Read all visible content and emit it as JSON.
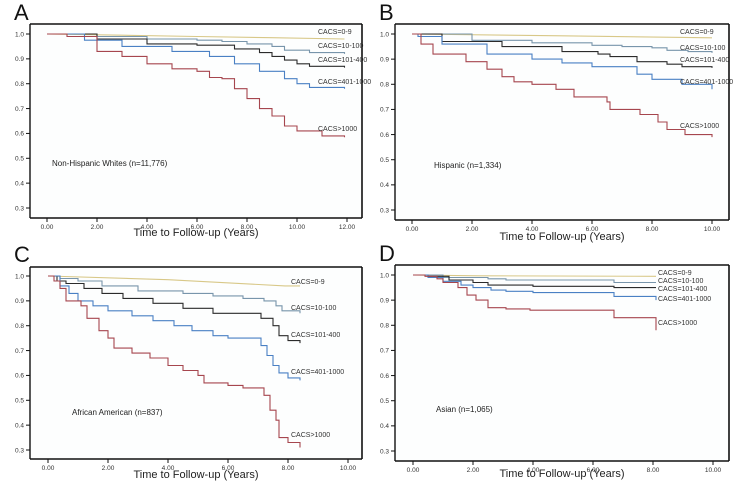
{
  "figure": {
    "description": "Kaplan-Meier survival curves by CACS category and ethnicity"
  },
  "colors": {
    "CACS=0-9": "#d8c888",
    "CACS=10-100": "#7895ab",
    "CACS=101-400": "#2b2b2b",
    "CACS=401-1000": "#4a80c4",
    "CACS>1000": "#a6464e"
  },
  "chart_data": [
    {
      "type": "line",
      "panel": "A",
      "title": "",
      "annotation": "Non-Hispanic Whites (n=11,776)",
      "xlabel": "Time to Follow-up (Years)",
      "ylabel": "",
      "xlim": [
        0,
        12
      ],
      "ylim": [
        0.3,
        1.0
      ],
      "xticks": [
        0,
        2,
        4,
        6,
        8,
        10,
        12
      ],
      "xtick_labels": [
        "0.00",
        "2.00",
        "4.00",
        "6.00",
        "8.00",
        "10.00",
        "12.00"
      ],
      "yticks": [
        0.3,
        0.4,
        0.5,
        0.6,
        0.7,
        0.8,
        0.9,
        1.0
      ],
      "ytick_labels": [
        "0.3",
        "0.4",
        "0.5",
        "0.6",
        "0.7",
        "0.8",
        "0.9",
        "1.0"
      ],
      "grid": false,
      "series": [
        {
          "name": "CACS=0-9",
          "label": "CACS=0-9",
          "x": [
            0,
            3,
            6,
            9,
            11.9
          ],
          "y": [
            1.0,
            0.995,
            0.99,
            0.985,
            0.98
          ]
        },
        {
          "name": "CACS=10-100",
          "label": "CACS=10-100",
          "x": [
            0,
            2,
            4,
            6,
            7,
            8,
            9,
            9.5,
            10.5,
            11.9
          ],
          "y": [
            1.0,
            0.99,
            0.98,
            0.975,
            0.97,
            0.96,
            0.95,
            0.935,
            0.925,
            0.92
          ]
        },
        {
          "name": "CACS=101-400",
          "label": "CACS=101-400",
          "x": [
            0,
            2,
            4,
            6,
            7.5,
            8.5,
            9,
            9.5,
            10,
            10.5,
            11.9
          ],
          "y": [
            1.0,
            0.98,
            0.96,
            0.955,
            0.94,
            0.925,
            0.91,
            0.895,
            0.88,
            0.87,
            0.865
          ]
        },
        {
          "name": "CACS=401-1000",
          "label": "CACS=401-1000",
          "x": [
            0,
            1.5,
            3,
            5,
            6.5,
            7.5,
            8.5,
            9.5,
            10,
            10.5,
            11.9
          ],
          "y": [
            1.0,
            0.975,
            0.95,
            0.93,
            0.91,
            0.88,
            0.85,
            0.82,
            0.8,
            0.785,
            0.78
          ]
        },
        {
          "name": "CACS>1000",
          "label": "CACS>1000",
          "x": [
            0,
            0.8,
            2,
            3,
            4,
            5,
            6,
            6.5,
            7,
            7.5,
            8,
            8.5,
            9,
            9.5,
            10,
            11,
            11.9
          ],
          "y": [
            1.0,
            0.99,
            0.93,
            0.91,
            0.88,
            0.86,
            0.85,
            0.825,
            0.82,
            0.78,
            0.74,
            0.7,
            0.67,
            0.63,
            0.61,
            0.59,
            0.585
          ]
        }
      ]
    },
    {
      "type": "line",
      "panel": "B",
      "title": "",
      "annotation": "Hispanic (n=1,334)",
      "xlabel": "Time to Follow-up (Years)",
      "ylabel": "",
      "xlim": [
        0,
        10
      ],
      "ylim": [
        0.3,
        1.0
      ],
      "xticks": [
        0,
        2,
        4,
        6,
        8,
        10
      ],
      "xtick_labels": [
        "0.00",
        "2.00",
        "4.00",
        "6.00",
        "8.00",
        "10.00"
      ],
      "yticks": [
        0.3,
        0.4,
        0.5,
        0.6,
        0.7,
        0.8,
        0.9,
        1.0
      ],
      "ytick_labels": [
        "0.3",
        "0.4",
        "0.5",
        "0.6",
        "0.7",
        "0.8",
        "0.9",
        "1.0"
      ],
      "grid": false,
      "series": [
        {
          "name": "CACS=0-9",
          "label": "CACS=0-9",
          "x": [
            0,
            5,
            10
          ],
          "y": [
            1.0,
            0.993,
            0.985
          ]
        },
        {
          "name": "CACS=10-100",
          "label": "CACS=10-100",
          "x": [
            0,
            2,
            4,
            6,
            7,
            8,
            8.5,
            9.2,
            10
          ],
          "y": [
            1.0,
            0.975,
            0.965,
            0.955,
            0.95,
            0.945,
            0.935,
            0.93,
            0.925
          ]
        },
        {
          "name": "CACS=101-400",
          "label": "CACS=101-400",
          "x": [
            0,
            1,
            3,
            5,
            6.2,
            6.6,
            7.5,
            8.5,
            9,
            10
          ],
          "y": [
            1.0,
            0.97,
            0.95,
            0.93,
            0.92,
            0.91,
            0.89,
            0.88,
            0.87,
            0.865
          ]
        },
        {
          "name": "CACS=401-1000",
          "label": "CACS=401-1000",
          "x": [
            0,
            0.2,
            1,
            2.5,
            4,
            5,
            6,
            7.5,
            8,
            9,
            10
          ],
          "y": [
            1.0,
            0.99,
            0.96,
            0.92,
            0.9,
            0.885,
            0.87,
            0.84,
            0.82,
            0.8,
            0.78
          ]
        },
        {
          "name": "CACS>1000",
          "label": "CACS>1000",
          "x": [
            0,
            0.3,
            0.7,
            1.8,
            2.5,
            3,
            3.4,
            4,
            4.8,
            5.4,
            6.5,
            6.6,
            7.6,
            8.2,
            8.5,
            9.1,
            10
          ],
          "y": [
            1.0,
            0.96,
            0.92,
            0.89,
            0.86,
            0.83,
            0.81,
            0.8,
            0.78,
            0.75,
            0.73,
            0.7,
            0.68,
            0.65,
            0.62,
            0.6,
            0.59
          ]
        }
      ]
    },
    {
      "type": "line",
      "panel": "C",
      "title": "",
      "annotation": "African American (n=837)",
      "xlabel": "Time to Follow-up (Years)",
      "ylabel": "",
      "xlim": [
        0,
        10
      ],
      "ylim": [
        0.3,
        1.0
      ],
      "xticks": [
        0,
        2,
        4,
        6,
        8,
        10
      ],
      "xtick_labels": [
        "0.00",
        "2.00",
        "4.00",
        "6.00",
        "8.00",
        "10.00"
      ],
      "yticks": [
        0.3,
        0.4,
        0.5,
        0.6,
        0.7,
        0.8,
        0.9,
        1.0
      ],
      "ytick_labels": [
        "0.3",
        "0.4",
        "0.5",
        "0.6",
        "0.7",
        "0.8",
        "0.9",
        "1.0"
      ],
      "grid": false,
      "series": [
        {
          "name": "CACS=0-9",
          "label": "CACS=0-9",
          "x": [
            0,
            4,
            7.9,
            8.4
          ],
          "y": [
            1.0,
            0.985,
            0.96,
            0.96
          ]
        },
        {
          "name": "CACS=10-100",
          "label": "CACS=10-100",
          "x": [
            0,
            0.4,
            1,
            1.8,
            3,
            4.5,
            5.5,
            6.5,
            7.2,
            7.6,
            7.8,
            8.4
          ],
          "y": [
            1.0,
            0.99,
            0.98,
            0.96,
            0.94,
            0.93,
            0.92,
            0.91,
            0.9,
            0.88,
            0.86,
            0.85
          ]
        },
        {
          "name": "CACS=101-400",
          "label": "CACS=101-400",
          "x": [
            0,
            0.3,
            0.6,
            1.2,
            1.8,
            2.5,
            3.5,
            4.5,
            5.5,
            6.8,
            7.1,
            7.5,
            7.7,
            8,
            8.4
          ],
          "y": [
            1.0,
            0.98,
            0.97,
            0.95,
            0.93,
            0.91,
            0.89,
            0.87,
            0.85,
            0.85,
            0.83,
            0.8,
            0.76,
            0.74,
            0.73
          ]
        },
        {
          "name": "CACS=401-1000",
          "label": "CACS=401-1000",
          "x": [
            0,
            0.4,
            0.7,
            1,
            1.5,
            2,
            2.8,
            3.5,
            4.2,
            4.8,
            5.5,
            6,
            6.8,
            7.1,
            7.3,
            7.5,
            7.7,
            8,
            8.4
          ],
          "y": [
            1.0,
            0.96,
            0.93,
            0.9,
            0.88,
            0.86,
            0.84,
            0.82,
            0.8,
            0.78,
            0.76,
            0.75,
            0.75,
            0.72,
            0.68,
            0.64,
            0.61,
            0.59,
            0.58
          ]
        },
        {
          "name": "CACS>1000",
          "label": "CACS>1000",
          "x": [
            0,
            0.2,
            0.4,
            0.6,
            1.1,
            1.3,
            1.7,
            2,
            2.2,
            2.8,
            3.4,
            4,
            4.5,
            5,
            5.2,
            6,
            6.5,
            7.2,
            7.4,
            7.6,
            7.7,
            8,
            8.4
          ],
          "y": [
            1.0,
            0.98,
            0.95,
            0.9,
            0.88,
            0.83,
            0.78,
            0.75,
            0.71,
            0.69,
            0.67,
            0.64,
            0.62,
            0.6,
            0.57,
            0.56,
            0.55,
            0.52,
            0.46,
            0.42,
            0.35,
            0.33,
            0.31
          ]
        }
      ]
    },
    {
      "type": "line",
      "panel": "D",
      "title": "",
      "annotation": "Asian (n=1,065)",
      "xlabel": "Time to Follow-up (Years)",
      "ylabel": "",
      "xlim": [
        0,
        10
      ],
      "ylim": [
        0.3,
        1.0
      ],
      "xticks": [
        0,
        2,
        4,
        6,
        8,
        10
      ],
      "xtick_labels": [
        "0.00",
        "2.00",
        "4.00",
        "6.00",
        "8.00",
        "10.00"
      ],
      "yticks": [
        0.3,
        0.4,
        0.5,
        0.6,
        0.7,
        0.8,
        0.9,
        1.0
      ],
      "ytick_labels": [
        "0.3",
        "0.4",
        "0.5",
        "0.6",
        "0.7",
        "0.8",
        "0.9",
        "1.0"
      ],
      "grid": false,
      "series": [
        {
          "name": "CACS=0-9",
          "label": "CACS=0-9",
          "x": [
            0,
            2.2,
            8.1
          ],
          "y": [
            1.0,
            0.997,
            0.995
          ]
        },
        {
          "name": "CACS=10-100",
          "label": "CACS=10-100",
          "x": [
            0,
            1,
            2.5,
            3.1,
            6.7,
            6.7,
            8.1
          ],
          "y": [
            1.0,
            0.99,
            0.985,
            0.98,
            0.98,
            0.97,
            0.97
          ]
        },
        {
          "name": "CACS=101-400",
          "label": "CACS=101-400",
          "x": [
            0,
            0.5,
            1.2,
            2,
            2.5,
            4,
            6.7,
            8.1
          ],
          "y": [
            1.0,
            0.995,
            0.98,
            0.97,
            0.96,
            0.955,
            0.95,
            0.95
          ]
        },
        {
          "name": "CACS=401-1000",
          "label": "CACS=401-1000",
          "x": [
            0,
            0.5,
            1,
            1.6,
            2,
            2.6,
            3.1,
            4,
            6.7,
            8.1,
            8.1
          ],
          "y": [
            1.0,
            0.99,
            0.975,
            0.96,
            0.95,
            0.94,
            0.935,
            0.93,
            0.915,
            0.915,
            0.9
          ]
        },
        {
          "name": "CACS>1000",
          "label": "CACS>1000",
          "x": [
            0,
            0.4,
            0.8,
            1,
            1.5,
            1.8,
            2.1,
            2.5,
            3.1,
            3.9,
            6.7,
            6.7,
            8.1,
            8.1
          ],
          "y": [
            1.0,
            0.995,
            0.985,
            0.97,
            0.95,
            0.92,
            0.9,
            0.87,
            0.865,
            0.86,
            0.86,
            0.83,
            0.83,
            0.78
          ]
        }
      ]
    }
  ]
}
